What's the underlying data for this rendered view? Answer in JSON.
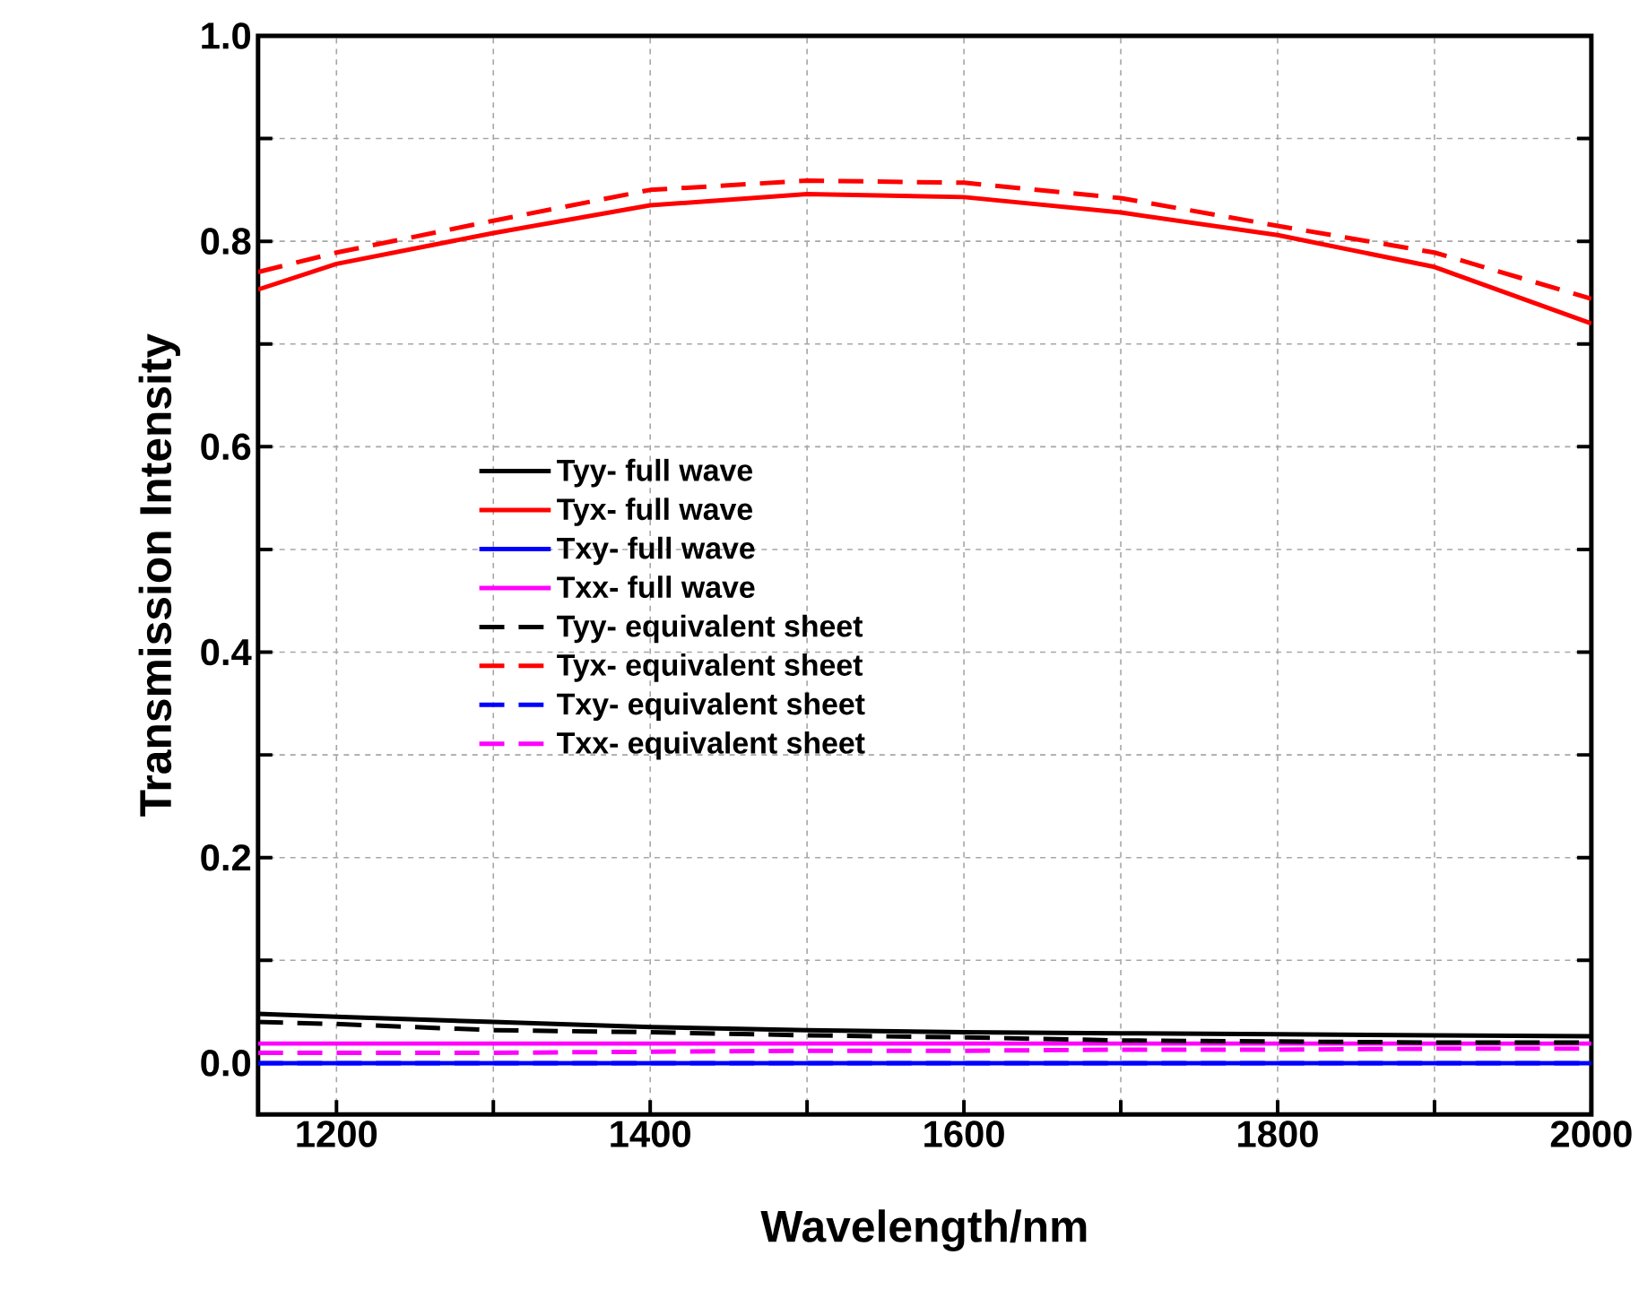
{
  "chart_data": {
    "type": "line",
    "xlabel": "Wavelength/nm",
    "ylabel": "Transmission Intensity",
    "x": [
      1150,
      1200,
      1300,
      1400,
      1500,
      1600,
      1700,
      1800,
      1900,
      2000
    ],
    "xlim": [
      1150,
      2000
    ],
    "ylim": [
      -0.05,
      1.0
    ],
    "xticks": [
      {
        "value": 1200,
        "label": "1200"
      },
      {
        "value": 1300,
        "label": null
      },
      {
        "value": 1400,
        "label": "1400"
      },
      {
        "value": 1500,
        "label": null
      },
      {
        "value": 1600,
        "label": "1600"
      },
      {
        "value": 1700,
        "label": null
      },
      {
        "value": 1800,
        "label": "1800"
      },
      {
        "value": 1900,
        "label": null
      },
      {
        "value": 2000,
        "label": "2000"
      }
    ],
    "yticks": [
      {
        "value": 0,
        "label": "0.0"
      },
      {
        "value": 0.1,
        "label": null
      },
      {
        "value": 0.2,
        "label": "0.2"
      },
      {
        "value": 0.3,
        "label": null
      },
      {
        "value": 0.4,
        "label": "0.4"
      },
      {
        "value": 0.5,
        "label": null
      },
      {
        "value": 0.6,
        "label": "0.6"
      },
      {
        "value": 0.7,
        "label": null
      },
      {
        "value": 0.8,
        "label": "0.8"
      },
      {
        "value": 0.9,
        "label": null
      },
      {
        "value": 1.0,
        "label": "1.0"
      }
    ],
    "grid": true,
    "legend": "left",
    "marker": "none",
    "series": [
      {
        "name": "Tyy- full wave",
        "color": "#000000",
        "line_style": "solid",
        "values": [
          0.048,
          0.045,
          0.04,
          0.035,
          0.032,
          0.03,
          0.029,
          0.028,
          0.027,
          0.026
        ]
      },
      {
        "name": "Tyx- full wave",
        "color": "#ff0000",
        "line_style": "solid",
        "values": [
          0.753,
          0.778,
          0.808,
          0.835,
          0.846,
          0.843,
          0.828,
          0.806,
          0.775,
          0.72
        ]
      },
      {
        "name": "Txy- full wave",
        "color": "#0000ff",
        "line_style": "solid",
        "values": [
          0,
          0,
          0,
          0,
          0,
          0,
          0,
          0,
          0,
          0
        ]
      },
      {
        "name": "Txx- full wave",
        "color": "#ff00ff",
        "line_style": "solid",
        "values": [
          0.019,
          0.019,
          0.019,
          0.019,
          0.019,
          0.019,
          0.019,
          0.019,
          0.019,
          0.019
        ]
      },
      {
        "name": "Tyy- equivalent sheet",
        "color": "#000000",
        "line_style": "dashed",
        "values": [
          0.04,
          0.038,
          0.032,
          0.03,
          0.027,
          0.025,
          0.022,
          0.021,
          0.02,
          0.02
        ]
      },
      {
        "name": "Tyx- equivalent sheet",
        "color": "#ff0000",
        "line_style": "dashed",
        "values": [
          0.77,
          0.789,
          0.82,
          0.85,
          0.859,
          0.857,
          0.842,
          0.815,
          0.789,
          0.744
        ]
      },
      {
        "name": "Txy- equivalent sheet",
        "color": "#0000ff",
        "line_style": "dashed",
        "values": [
          0,
          0,
          0,
          0,
          0,
          0,
          0,
          0,
          0,
          0
        ]
      },
      {
        "name": "Txx- equivalent sheet",
        "color": "#ff00ff",
        "line_style": "dashed",
        "values": [
          0.01,
          0.01,
          0.01,
          0.011,
          0.012,
          0.012,
          0.013,
          0.013,
          0.014,
          0.014
        ]
      }
    ]
  }
}
